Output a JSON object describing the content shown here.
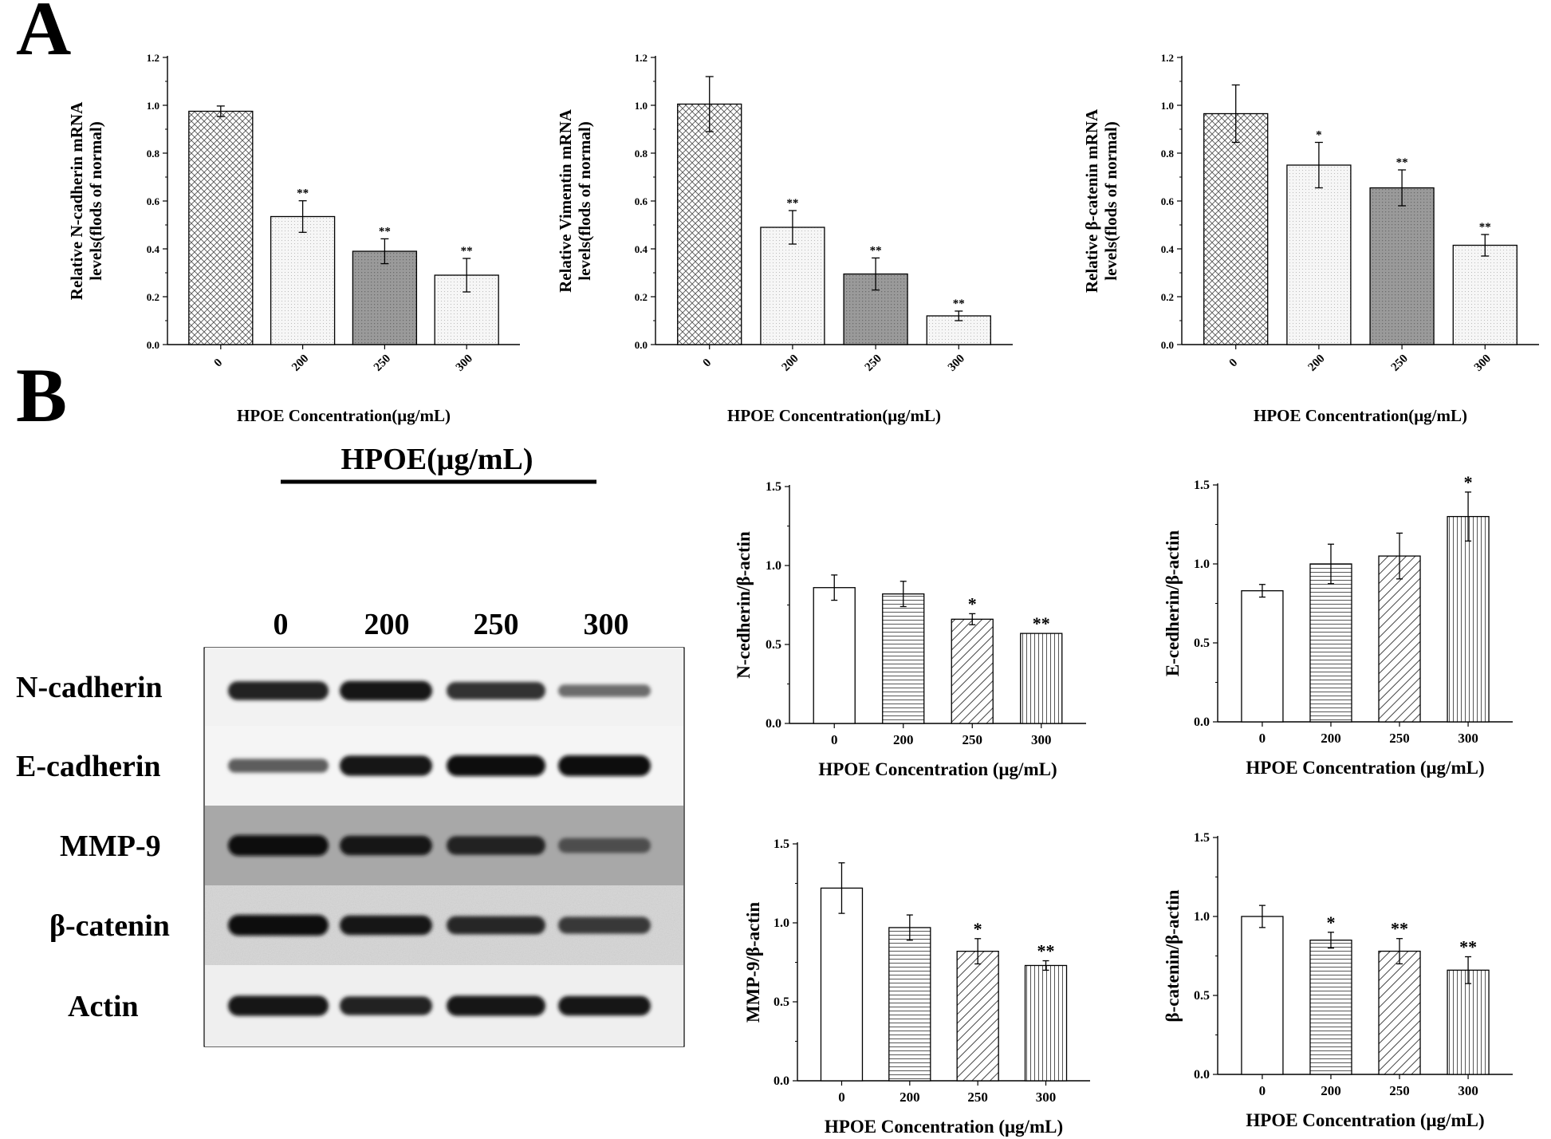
{
  "panels": {
    "A": "A",
    "B": "B"
  },
  "western_blot": {
    "treatment_label": "HPOE(μg/mL)",
    "lanes": [
      "0",
      "200",
      "250",
      "300"
    ],
    "rows": [
      {
        "label": "N-cadherin",
        "band_intensity": [
          0.85,
          0.9,
          0.75,
          0.35
        ]
      },
      {
        "label": "E-cadherin",
        "band_intensity": [
          0.45,
          0.95,
          1.0,
          1.0
        ]
      },
      {
        "label": "MMP-9",
        "band_intensity": [
          1.0,
          0.9,
          0.85,
          0.55
        ]
      },
      {
        "label": "β-catenin",
        "band_intensity": [
          1.0,
          0.9,
          0.8,
          0.7
        ]
      },
      {
        "label": "Actin",
        "band_intensity": [
          0.95,
          0.85,
          0.95,
          0.9
        ]
      }
    ]
  },
  "chart_data": [
    {
      "type": "bar",
      "panel": "A",
      "categories": [
        "0",
        "200",
        "250",
        "300"
      ],
      "values": [
        0.975,
        0.535,
        0.39,
        0.29
      ],
      "errors": [
        0.022,
        0.066,
        0.052,
        0.07
      ],
      "significance": [
        "",
        "**",
        "**",
        "**"
      ],
      "fills": [
        "crosshatch",
        "dots-light",
        "dots-dark",
        "dots-light"
      ],
      "ylabel_lines": [
        "Relative N-cadherin mRNA",
        "levels(flods of normal)"
      ],
      "xlabel": "HPOE Concentration(μg/mL)",
      "ylim": [
        0,
        1.2
      ],
      "yticks": [
        "0.0",
        "0.2",
        "0.4",
        "0.6",
        "0.8",
        "1.0",
        "1.2"
      ]
    },
    {
      "type": "bar",
      "panel": "A",
      "categories": [
        "0",
        "200",
        "250",
        "300"
      ],
      "values": [
        1.005,
        0.49,
        0.295,
        0.12
      ],
      "errors": [
        0.115,
        0.07,
        0.067,
        0.02
      ],
      "significance": [
        "",
        "**",
        "**",
        "**"
      ],
      "fills": [
        "crosshatch",
        "dots-light",
        "dots-dark",
        "dots-light"
      ],
      "ylabel_lines": [
        "Relative Vimentin mRNA",
        "levels(flods of normal)"
      ],
      "xlabel": "HPOE Concentration(μg/mL)",
      "ylim": [
        0,
        1.2
      ],
      "yticks": [
        "0.0",
        "0.2",
        "0.4",
        "0.6",
        "0.8",
        "1.0",
        "1.2"
      ]
    },
    {
      "type": "bar",
      "panel": "A",
      "categories": [
        "0",
        "200",
        "250",
        "300"
      ],
      "values": [
        0.965,
        0.75,
        0.655,
        0.415
      ],
      "errors": [
        0.12,
        0.095,
        0.075,
        0.045
      ],
      "significance": [
        "",
        "*",
        "**",
        "**"
      ],
      "fills": [
        "crosshatch",
        "dots-light",
        "dots-dark",
        "dots-light"
      ],
      "ylabel_lines": [
        "Relative β-catenin mRNA",
        "levels(flods of normal)"
      ],
      "xlabel": "HPOE Concentration(μg/mL)",
      "ylim": [
        0,
        1.2
      ],
      "yticks": [
        "0.0",
        "0.2",
        "0.4",
        "0.6",
        "0.8",
        "1.0",
        "1.2"
      ]
    },
    {
      "type": "bar",
      "panel": "B",
      "categories": [
        "0",
        "200",
        "250",
        "300"
      ],
      "values": [
        0.86,
        0.82,
        0.66,
        0.57
      ],
      "errors": [
        0.08,
        0.08,
        0.035,
        0.0
      ],
      "significance": [
        "",
        "",
        "*",
        "**"
      ],
      "fills": [
        "white",
        "hlines",
        "diagonal",
        "vlines"
      ],
      "ylabel_lines": [
        "N-cedherin/β-actin"
      ],
      "xlabel": "HPOE Concentration (μg/mL)",
      "ylim": [
        0,
        1.5
      ],
      "yticks": [
        "0.0",
        "0.5",
        "1.0",
        "1.5"
      ]
    },
    {
      "type": "bar",
      "panel": "B",
      "categories": [
        "0",
        "200",
        "250",
        "300"
      ],
      "values": [
        0.83,
        1.0,
        1.05,
        1.3
      ],
      "errors": [
        0.04,
        0.125,
        0.145,
        0.155
      ],
      "significance": [
        "",
        "",
        "",
        "*"
      ],
      "fills": [
        "white",
        "hlines",
        "diagonal",
        "vlines"
      ],
      "ylabel_lines": [
        "E-cedherin/β-actin"
      ],
      "xlabel": "HPOE Concentration (μg/mL)",
      "ylim": [
        0,
        1.5
      ],
      "yticks": [
        "0.0",
        "0.5",
        "1.0",
        "1.5"
      ]
    },
    {
      "type": "bar",
      "panel": "B",
      "categories": [
        "0",
        "200",
        "250",
        "300"
      ],
      "values": [
        1.22,
        0.97,
        0.82,
        0.73
      ],
      "errors": [
        0.16,
        0.08,
        0.08,
        0.03
      ],
      "significance": [
        "",
        "",
        "*",
        "**"
      ],
      "fills": [
        "white",
        "hlines",
        "diagonal",
        "vlines"
      ],
      "ylabel_lines": [
        "MMP-9/β-actin"
      ],
      "xlabel": "HPOE Concentration (μg/mL)",
      "ylim": [
        0,
        1.5
      ],
      "yticks": [
        "0.0",
        "0.5",
        "1.0",
        "1.5"
      ]
    },
    {
      "type": "bar",
      "panel": "B",
      "categories": [
        "0",
        "200",
        "250",
        "300"
      ],
      "values": [
        1.0,
        0.85,
        0.78,
        0.66
      ],
      "errors": [
        0.07,
        0.05,
        0.08,
        0.085
      ],
      "significance": [
        "",
        "*",
        "**",
        "**"
      ],
      "fills": [
        "white",
        "hlines",
        "diagonal",
        "vlines"
      ],
      "ylabel_lines": [
        "β-catenin/β-actin"
      ],
      "xlabel": "HPOE Concentration (μg/mL)",
      "ylim": [
        0,
        1.5
      ],
      "yticks": [
        "0.0",
        "0.5",
        "1.0",
        "1.5"
      ]
    }
  ]
}
